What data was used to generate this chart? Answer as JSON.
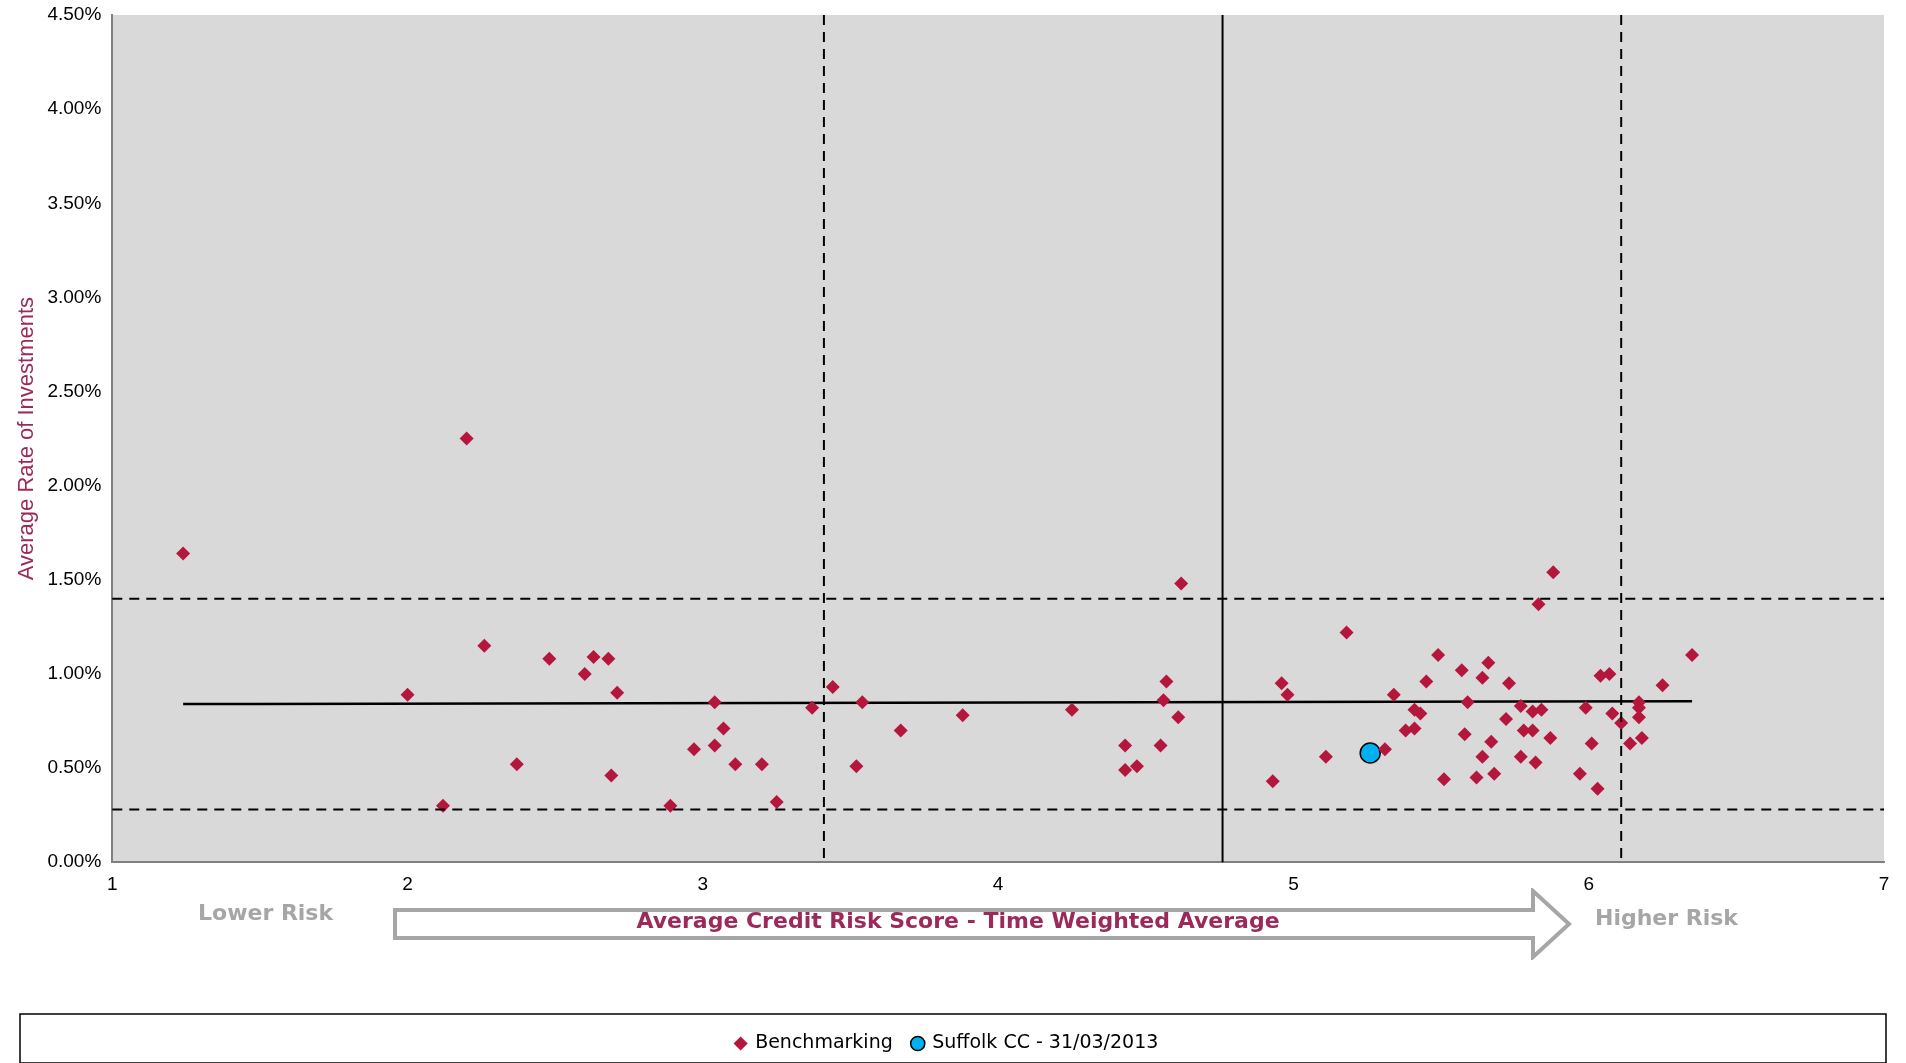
{
  "chart_data": {
    "type": "scatter",
    "xlabel": "Average Credit Risk Score - Time Weighted Average",
    "ylabel": "Average Rate of Investments",
    "annotations": [
      "Lower Risk",
      "Higher Risk"
    ],
    "xlim": [
      1,
      7
    ],
    "xticks": [
      1,
      2,
      3,
      4,
      5,
      6,
      7
    ],
    "ylim": [
      0,
      4.5
    ],
    "yticks": [
      {
        "value": 0,
        "label": "0.00%"
      },
      {
        "value": 0.5,
        "label": "0.50%"
      },
      {
        "value": 1,
        "label": "1.00%"
      },
      {
        "value": 1.5,
        "label": "1.50%"
      },
      {
        "value": 2,
        "label": "2.00%"
      },
      {
        "value": 2.5,
        "label": "2.50%"
      },
      {
        "value": 3,
        "label": "3.00%"
      },
      {
        "value": 3.5,
        "label": "3.50%"
      },
      {
        "value": 4,
        "label": "4.00%"
      },
      {
        "value": 4.5,
        "label": "4.50%"
      }
    ],
    "grid": false,
    "legend": "bottom",
    "ref_lines": [
      {
        "axis": "x",
        "value": 3.41,
        "line_style": "dashed",
        "color": "#000000"
      },
      {
        "axis": "x",
        "value": 4.76,
        "line_style": "solid",
        "color": "#000000"
      },
      {
        "axis": "x",
        "value": 6.11,
        "line_style": "dashed",
        "color": "#000000"
      },
      {
        "axis": "y",
        "value": 1.4,
        "line_style": "dashed",
        "color": "#000000"
      },
      {
        "axis": "y",
        "value": 0.28,
        "line_style": "dashed",
        "color": "#000000"
      }
    ],
    "series": [
      {
        "name": "Benchmarking",
        "color": "#b5173c",
        "marker": "diamond",
        "x": [
          1.24,
          2.0,
          2.12,
          2.2,
          2.26,
          2.37,
          2.48,
          2.6,
          2.63,
          2.68,
          2.69,
          2.71,
          2.89,
          2.97,
          3.04,
          3.04,
          3.07,
          3.11,
          3.2,
          3.25,
          3.37,
          3.44,
          3.52,
          3.54,
          3.67,
          3.88,
          4.25,
          4.43,
          4.43,
          4.47,
          4.55,
          4.56,
          4.57,
          4.61,
          4.62,
          4.93,
          4.96,
          4.98,
          5.11,
          5.18,
          5.31,
          5.34,
          5.38,
          5.41,
          5.41,
          5.43,
          5.45,
          5.49,
          5.51,
          5.57,
          5.58,
          5.59,
          5.62,
          5.64,
          5.64,
          5.66,
          5.67,
          5.68,
          5.72,
          5.73,
          5.77,
          5.77,
          5.78,
          5.81,
          5.81,
          5.82,
          5.83,
          5.84,
          5.87,
          5.88,
          5.97,
          5.99,
          6.01,
          6.03,
          6.04,
          6.07,
          6.08,
          6.11,
          6.14,
          6.17,
          6.17,
          6.17,
          6.18,
          6.25,
          6.35
        ],
        "values": [
          1.64,
          0.89,
          0.3,
          2.25,
          1.15,
          0.52,
          1.08,
          1.0,
          1.09,
          1.08,
          0.46,
          0.9,
          0.3,
          0.6,
          0.85,
          0.62,
          0.71,
          0.52,
          0.52,
          0.32,
          0.82,
          0.93,
          0.51,
          0.85,
          0.7,
          0.78,
          0.81,
          0.62,
          0.49,
          0.51,
          0.62,
          0.86,
          0.96,
          0.77,
          1.48,
          0.43,
          0.95,
          0.89,
          0.56,
          1.22,
          0.6,
          0.89,
          0.7,
          0.71,
          0.81,
          0.79,
          0.96,
          1.1,
          0.44,
          1.02,
          0.68,
          0.85,
          0.45,
          0.56,
          0.98,
          1.06,
          0.64,
          0.47,
          0.76,
          0.95,
          0.56,
          0.83,
          0.7,
          0.8,
          0.7,
          0.53,
          1.37,
          0.81,
          0.66,
          1.54,
          0.47,
          0.82,
          0.63,
          0.39,
          0.99,
          1.0,
          0.79,
          0.74,
          0.63,
          0.85,
          0.82,
          0.77,
          0.66,
          0.94,
          1.1
        ]
      },
      {
        "name": "Suffolk CC - 31/03/2013",
        "color": "#00b0f0",
        "marker": "circle",
        "x": [
          5.26
        ],
        "values": [
          0.58
        ]
      },
      {
        "type": "line",
        "color": "#000000",
        "marker": "none",
        "line_style": "solid",
        "x": [
          1.24,
          6.35
        ],
        "values": [
          0.84,
          0.855
        ]
      }
    ]
  }
}
